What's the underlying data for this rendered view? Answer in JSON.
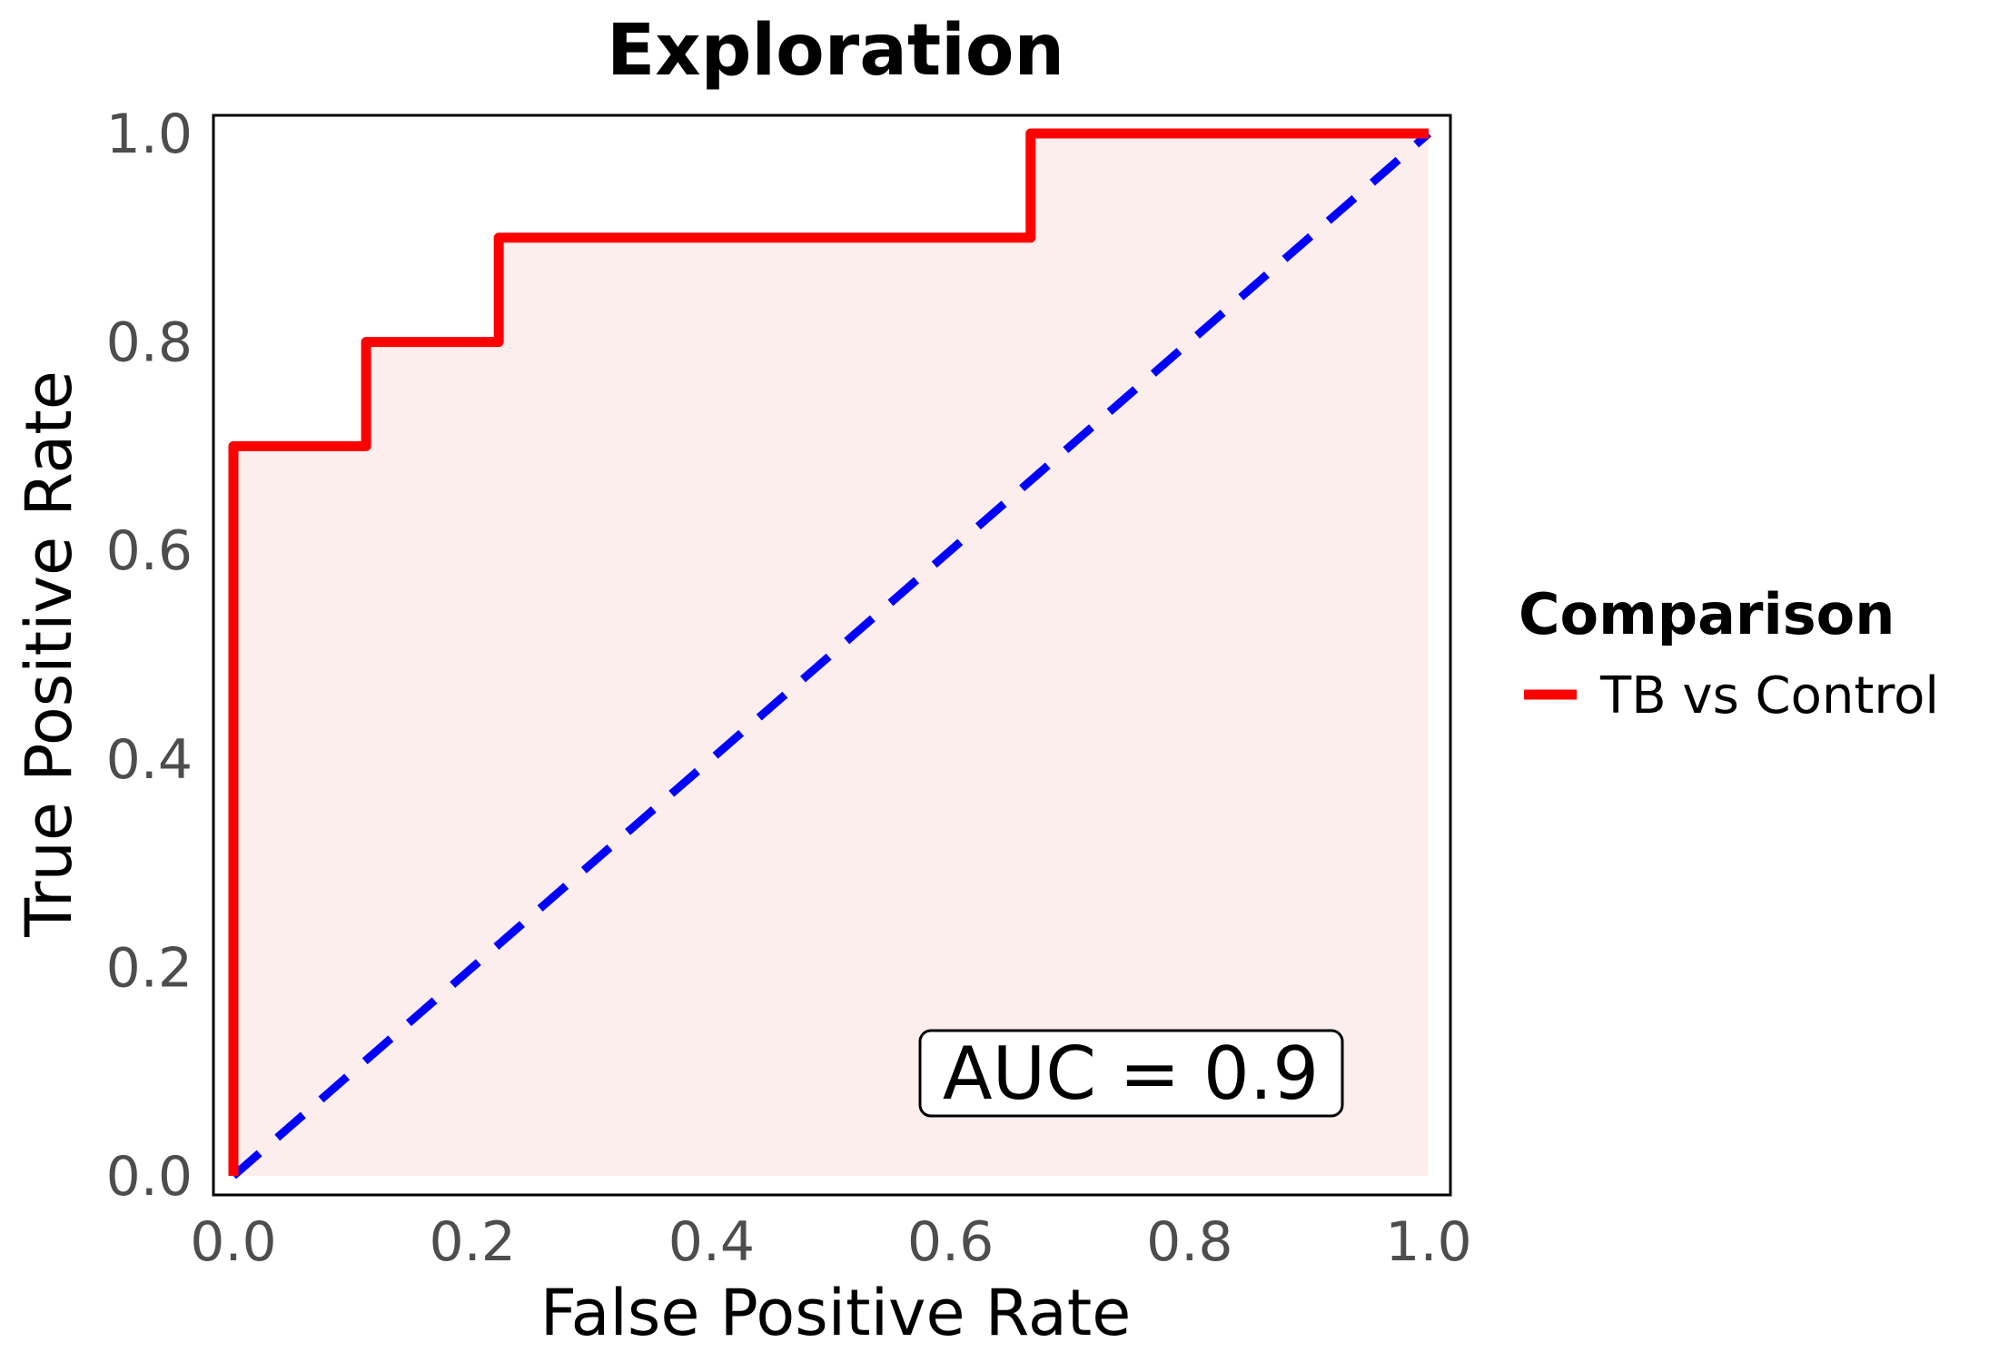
{
  "chart_data": {
    "type": "line",
    "title": "Exploration",
    "xlabel": "False Positive Rate",
    "ylabel": "True Positive Rate",
    "xlim": [
      0,
      1
    ],
    "ylim": [
      0,
      1
    ],
    "x_ticks": [
      "0.0",
      "0.2",
      "0.4",
      "0.6",
      "0.8",
      "1.0"
    ],
    "y_ticks": [
      "0.0",
      "0.2",
      "0.4",
      "0.6",
      "0.8",
      "1.0"
    ],
    "grid": false,
    "legend": {
      "title": "Comparison",
      "placement": "right",
      "entries": [
        "TB vs Control"
      ]
    },
    "series": [
      {
        "name": "TB vs Control",
        "color": "#ff0000",
        "style": "step",
        "x": [
          0.0,
          0.0,
          0.111,
          0.111,
          0.222,
          0.222,
          0.667,
          0.667,
          1.0
        ],
        "y": [
          0.0,
          0.7,
          0.7,
          0.8,
          0.8,
          0.9,
          0.9,
          1.0,
          1.0
        ]
      }
    ],
    "reference_line": {
      "color": "#0000ff",
      "style": "dashed",
      "x": [
        0,
        1
      ],
      "y": [
        0,
        1
      ]
    },
    "area_fill_color": "#fdeeee",
    "annotation": {
      "label": "AUC = ",
      "value": "0.9",
      "placement": "bottom-right"
    }
  }
}
